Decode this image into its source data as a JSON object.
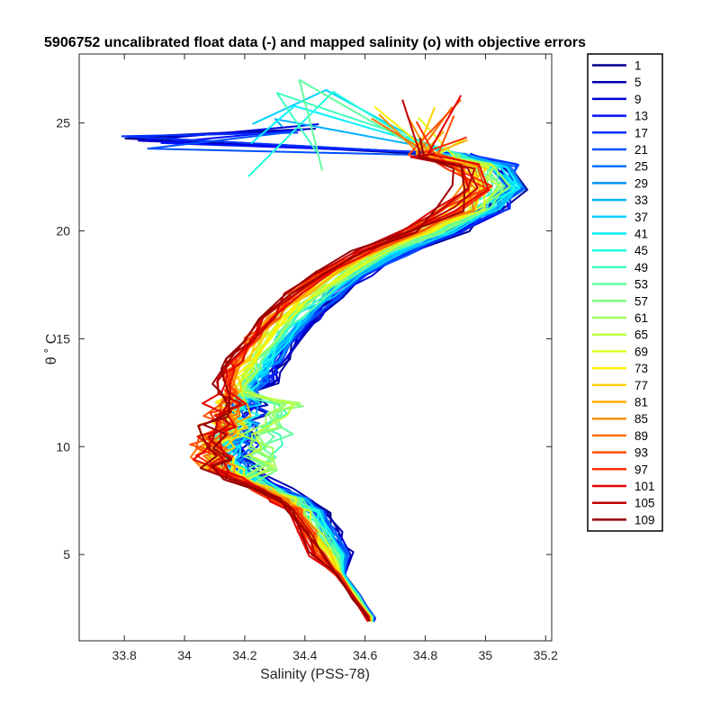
{
  "chart_data": {
    "type": "line",
    "title": "5906752 uncalibrated float data (-) and mapped salinity (o) with objective errors",
    "xlabel": "Salinity (PSS-78)",
    "ylabel": "θ ˚ C",
    "xlim": [
      33.65,
      35.22
    ],
    "ylim": [
      1,
      28.2
    ],
    "xticks": [
      33.8,
      34,
      34.2,
      34.4,
      34.6,
      34.8,
      35,
      35.2
    ],
    "xtick_labels": [
      "33.8",
      "34",
      "34.2",
      "34.4",
      "34.6",
      "34.8",
      "35",
      "35.2"
    ],
    "yticks": [
      5,
      10,
      15,
      20,
      25
    ],
    "ytick_labels": [
      "5",
      "10",
      "15",
      "20",
      "25"
    ],
    "grid": false,
    "legend_position": "outside-right",
    "colormap": "jet",
    "series": [
      {
        "name": "1",
        "color": "#00008f"
      },
      {
        "name": "5",
        "color": "#0000b0"
      },
      {
        "name": "9",
        "color": "#0000d6"
      },
      {
        "name": "13",
        "color": "#0010ff"
      },
      {
        "name": "17",
        "color": "#0030ff"
      },
      {
        "name": "21",
        "color": "#0050ff"
      },
      {
        "name": "25",
        "color": "#0070ff"
      },
      {
        "name": "29",
        "color": "#0090ff"
      },
      {
        "name": "33",
        "color": "#00b0ff"
      },
      {
        "name": "37",
        "color": "#00d0ff"
      },
      {
        "name": "41",
        "color": "#00f0ff"
      },
      {
        "name": "45",
        "color": "#20ffdf"
      },
      {
        "name": "49",
        "color": "#40ffbf"
      },
      {
        "name": "53",
        "color": "#60ff9f"
      },
      {
        "name": "57",
        "color": "#80ff7f"
      },
      {
        "name": "61",
        "color": "#a0ff5f"
      },
      {
        "name": "65",
        "color": "#c0ff3f"
      },
      {
        "name": "69",
        "color": "#e0ff1f"
      },
      {
        "name": "73",
        "color": "#ffef00"
      },
      {
        "name": "77",
        "color": "#ffcf00"
      },
      {
        "name": "81",
        "color": "#ffaf00"
      },
      {
        "name": "85",
        "color": "#ff8f00"
      },
      {
        "name": "89",
        "color": "#ff6f00"
      },
      {
        "name": "93",
        "color": "#ff4f00"
      },
      {
        "name": "97",
        "color": "#ff2f00"
      },
      {
        "name": "101",
        "color": "#e60000"
      },
      {
        "name": "105",
        "color": "#c00000"
      },
      {
        "name": "109",
        "color": "#9a0000"
      }
    ],
    "base_profile": {
      "theta": [
        2.0,
        3.0,
        4.0,
        5.0,
        6.0,
        7.0,
        7.5,
        8.0,
        8.5,
        9.0,
        9.5,
        10.0,
        10.5,
        11.0,
        11.5,
        12.0,
        12.5,
        13.0,
        13.5,
        14.0,
        15.0,
        16.0,
        17.0,
        18.0,
        19.0,
        20.0,
        21.0,
        22.0,
        23.0,
        23.5
      ],
      "salinity": [
        34.62,
        34.57,
        34.52,
        34.48,
        34.44,
        34.4,
        34.35,
        34.28,
        34.2,
        34.14,
        34.12,
        34.12,
        34.13,
        34.15,
        34.16,
        34.17,
        34.18,
        34.19,
        34.21,
        34.23,
        34.28,
        34.34,
        34.42,
        34.52,
        34.65,
        34.82,
        34.95,
        35.02,
        34.98,
        34.85
      ]
    },
    "salinity_offset_by_profile": [
      0.1,
      0.06,
      0.02,
      -0.04,
      -0.07
    ],
    "low_salinity_surface_excursion": {
      "theta": 24.1,
      "salinity": 33.76
    }
  }
}
